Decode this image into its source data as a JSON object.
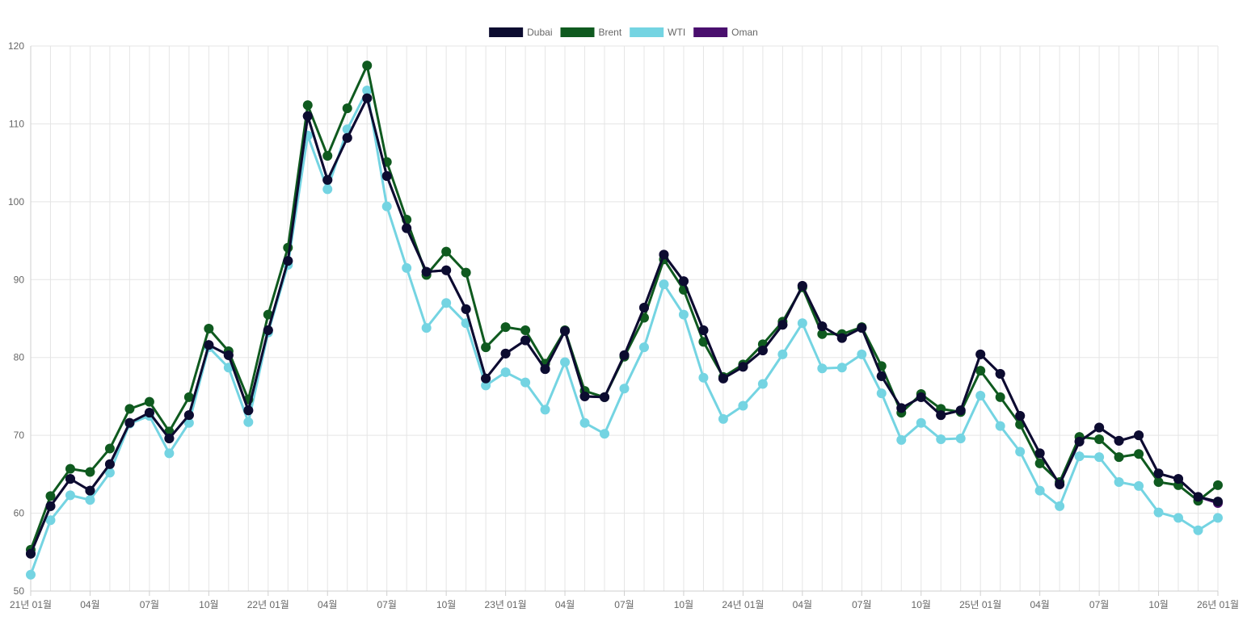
{
  "chart_data": {
    "type": "line",
    "title": "",
    "xlabel": "",
    "ylabel": "",
    "ylim": [
      50,
      120
    ],
    "yticks": [
      50,
      60,
      70,
      80,
      90,
      100,
      110,
      120
    ],
    "grid": true,
    "legend_position": "top-center",
    "x_tick_labels": [
      "21년 01월",
      "04월",
      "07월",
      "10월",
      "22년 01월",
      "04월",
      "07월",
      "10월",
      "23년 01월",
      "04월",
      "07월",
      "10월",
      "24년 01월",
      "04월",
      "07월",
      "10월",
      "25년 01월",
      "04월",
      "07월",
      "10월",
      "26년 01월"
    ],
    "x_tick_every": 3,
    "series": [
      {
        "name": "Oman",
        "color": "#4a0f6e",
        "values": [
          54.8,
          60.9,
          64.4,
          62.9,
          66.3,
          71.6,
          72.9,
          69.6,
          72.6,
          81.6,
          80.3,
          73.2,
          83.5,
          92.4,
          111.0,
          102.8,
          108.2,
          113.3,
          103.3,
          96.6,
          91.0,
          91.2,
          86.2,
          77.3,
          80.5,
          82.2,
          78.5,
          83.4,
          75.0,
          74.9,
          80.3,
          86.4,
          93.2,
          89.8,
          83.5,
          77.3,
          78.8,
          80.9,
          84.2,
          89.2,
          84.0,
          82.5,
          83.8,
          77.6,
          73.5,
          74.9,
          72.6,
          73.2,
          80.4,
          77.9,
          72.5,
          67.7,
          63.7,
          69.2,
          71.0,
          69.3,
          70.0,
          65.1,
          64.4,
          62.1,
          61.3
        ]
      },
      {
        "name": "WTI",
        "color": "#74d4e2",
        "values": [
          52.1,
          59.1,
          62.3,
          61.7,
          65.2,
          71.5,
          72.5,
          67.7,
          71.6,
          81.3,
          78.7,
          71.7,
          83.2,
          91.9,
          108.5,
          101.6,
          109.3,
          114.3,
          99.4,
          91.5,
          83.8,
          87.0,
          84.4,
          76.4,
          78.1,
          76.8,
          73.3,
          79.4,
          71.6,
          70.2,
          76.0,
          81.3,
          89.4,
          85.5,
          77.4,
          72.1,
          73.8,
          76.6,
          80.4,
          84.4,
          78.6,
          78.7,
          80.4,
          75.4,
          69.4,
          71.6,
          69.5,
          69.6,
          75.1,
          71.2,
          67.9,
          62.9,
          60.9,
          67.3,
          67.2,
          64.0,
          63.5,
          60.1,
          59.4,
          57.8,
          59.4
        ]
      },
      {
        "name": "Brent",
        "color": "#0f5a1f",
        "values": [
          55.3,
          62.2,
          65.7,
          65.3,
          68.3,
          73.4,
          74.3,
          70.5,
          74.9,
          83.7,
          80.8,
          74.6,
          85.5,
          94.1,
          112.4,
          105.9,
          112.0,
          117.5,
          105.1,
          97.7,
          90.6,
          93.6,
          90.9,
          81.3,
          83.9,
          83.5,
          79.2,
          83.5,
          75.7,
          74.9,
          80.1,
          85.1,
          92.6,
          88.7,
          82.0,
          77.5,
          79.1,
          81.7,
          84.6,
          89.0,
          83.0,
          83.0,
          83.9,
          78.9,
          72.9,
          75.3,
          73.4,
          73.0,
          78.3,
          74.9,
          71.4,
          66.4,
          64.0,
          69.8,
          69.5,
          67.2,
          67.6,
          64.0,
          63.6,
          61.6,
          63.6
        ]
      },
      {
        "name": "Dubai",
        "color": "#0c0c30",
        "values": [
          54.8,
          60.9,
          64.4,
          62.9,
          66.3,
          71.6,
          72.9,
          69.6,
          72.6,
          81.6,
          80.3,
          73.2,
          83.5,
          92.4,
          111.0,
          102.8,
          108.2,
          113.3,
          103.3,
          96.6,
          91.0,
          91.2,
          86.2,
          77.3,
          80.5,
          82.2,
          78.5,
          83.4,
          75.0,
          74.9,
          80.3,
          86.4,
          93.2,
          89.8,
          83.5,
          77.3,
          78.8,
          80.9,
          84.2,
          89.2,
          84.0,
          82.5,
          83.8,
          77.6,
          73.5,
          74.9,
          72.6,
          73.2,
          80.4,
          77.9,
          72.5,
          67.7,
          63.7,
          69.2,
          71.0,
          69.3,
          70.0,
          65.1,
          64.4,
          62.1,
          61.5
        ]
      }
    ],
    "legend": [
      {
        "name": "Dubai",
        "color": "#0c0c30"
      },
      {
        "name": "Brent",
        "color": "#0f5a1f"
      },
      {
        "name": "WTI",
        "color": "#74d4e2"
      },
      {
        "name": "Oman",
        "color": "#4a0f6e"
      }
    ]
  }
}
